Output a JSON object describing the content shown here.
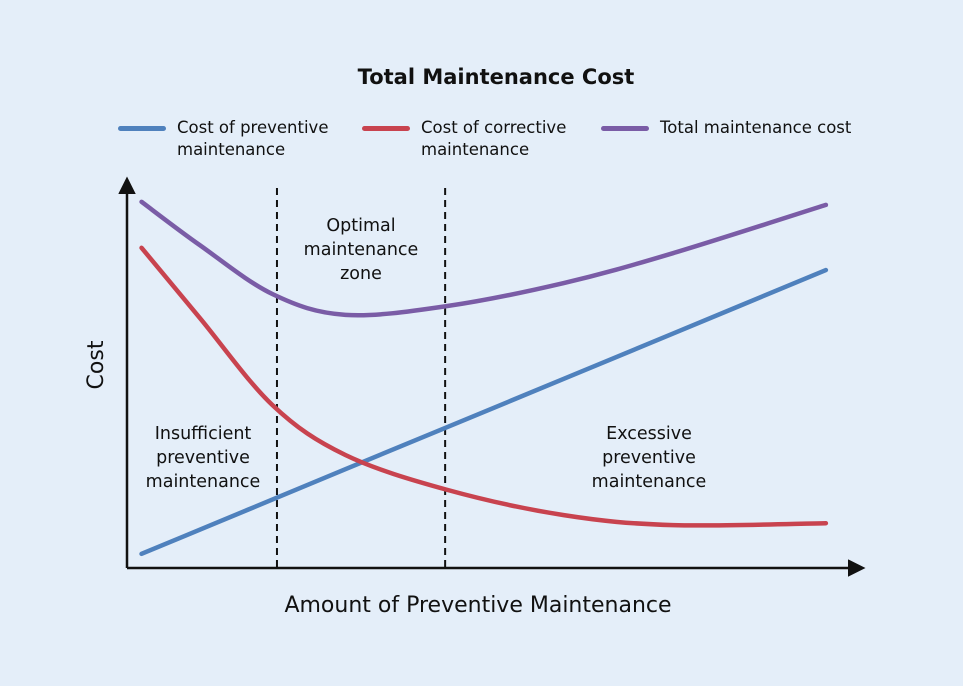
{
  "chart_data": {
    "type": "line",
    "title": "Total Maintenance Cost",
    "x_label": "Amount of Preventive Maintenance",
    "y_label": "Cost",
    "x": [
      2,
      10,
      20,
      30,
      44,
      60,
      75,
      96
    ],
    "series": [
      {
        "name": "Cost of preventive maintenance",
        "color": "#4f81bd",
        "values": [
          3.7,
          10.0,
          17.9,
          25.8,
          36.8,
          49.4,
          61.2,
          77.8
        ]
      },
      {
        "name": "Cost of corrective maintenance",
        "color": "#c8434f",
        "values": [
          83.6,
          65.3,
          42.5,
          29.5,
          20.4,
          13.8,
          11.2,
          11.7
        ]
      },
      {
        "name": "Total maintenance cost",
        "color": "#7a5ca6",
        "values": [
          95.6,
          84.3,
          71.5,
          66.1,
          68.4,
          74.4,
          82.2,
          94.8
        ]
      }
    ],
    "xlim": [
      0,
      100
    ],
    "ylim": [
      0,
      100
    ],
    "zone_boundaries": [
      20.6,
      43.7
    ],
    "annotations": [
      {
        "lines": [
          "Optimal",
          "maintenance",
          "zone"
        ]
      },
      {
        "lines": [
          "Insufficient",
          "preventive",
          "maintenance"
        ]
      },
      {
        "lines": [
          "Excessive",
          "preventive",
          "maintenance"
        ]
      }
    ]
  }
}
